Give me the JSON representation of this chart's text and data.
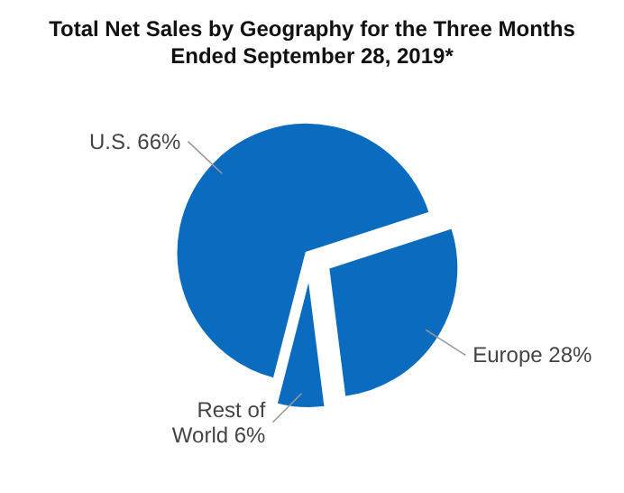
{
  "chart_data": {
    "type": "pie",
    "title": "Total Net Sales by Geography for the Three Months Ended September 28, 2019*",
    "categories": [
      "U.S.",
      "Europe",
      "Rest of World"
    ],
    "values": [
      66,
      28,
      6
    ],
    "value_labels": [
      "66%",
      "28%",
      "6%"
    ],
    "colors": [
      "#0a6bbf",
      "#0a6bbf",
      "#0a6bbf"
    ]
  }
}
